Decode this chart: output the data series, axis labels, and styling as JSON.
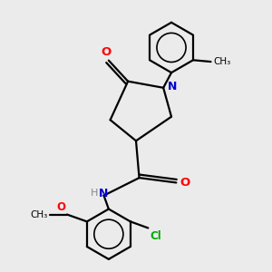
{
  "bg_color": "#ebebeb",
  "atom_colors": {
    "O": "#ff0000",
    "N": "#0000cc",
    "Cl": "#00aa00",
    "C": "#000000",
    "H": "#888888"
  },
  "bond_color": "#000000",
  "bond_width": 1.6,
  "figsize": [
    3.0,
    3.0
  ],
  "dpi": 100,
  "xlim": [
    -2.5,
    3.5
  ],
  "ylim": [
    -4.5,
    3.8
  ]
}
